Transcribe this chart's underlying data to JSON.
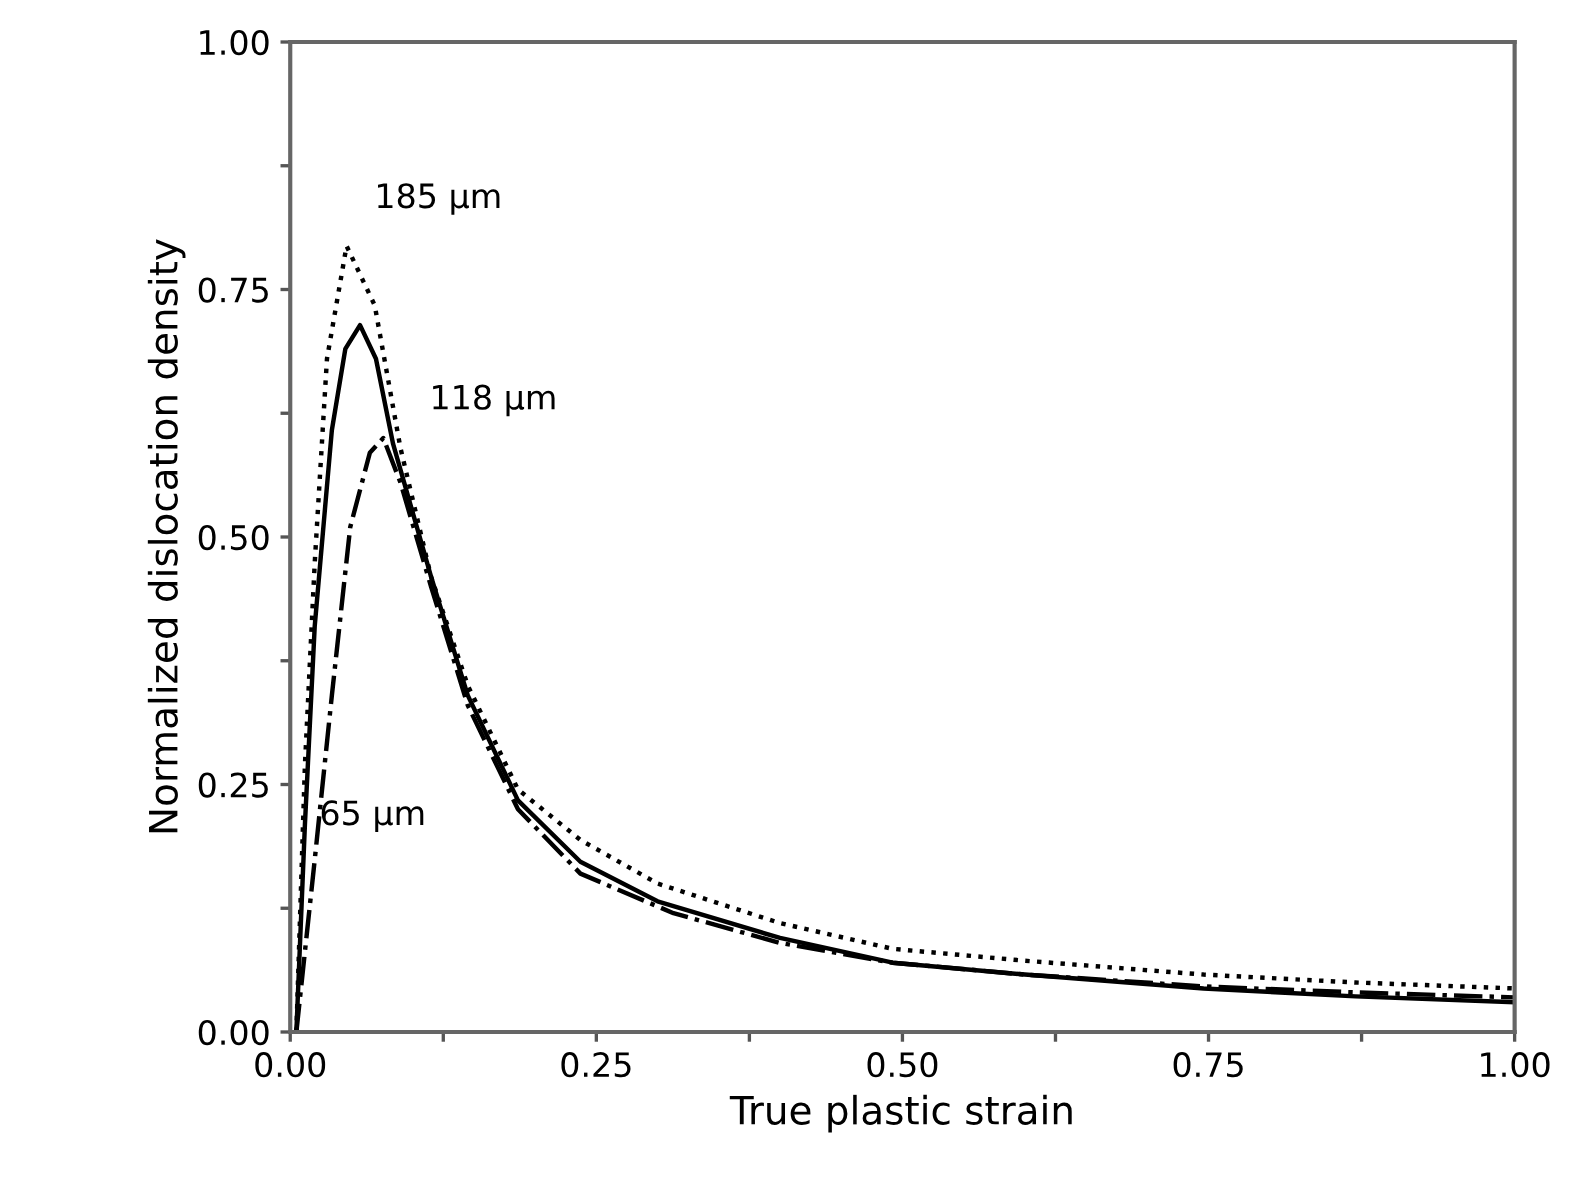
{
  "chart_data": {
    "type": "line",
    "xlabel": "True plastic strain",
    "ylabel": "Normalized dislocation density",
    "xlim": [
      0,
      1.0
    ],
    "ylim": [
      0,
      1.0
    ],
    "xticks": [
      {
        "value": 0,
        "label": "0.00"
      },
      {
        "value": 0.125,
        "label": null
      },
      0.25,
      {
        "value": 0.375,
        "label": null
      },
      {
        "value": 0.5,
        "label": "0.50"
      },
      {
        "value": 0.625,
        "label": null
      },
      0.75,
      {
        "value": 0.875,
        "label": null
      },
      {
        "value": 1,
        "label": "1.00"
      }
    ],
    "yticks": [
      {
        "value": 0,
        "label": "0.00"
      },
      {
        "value": 0.125,
        "label": null
      },
      0.25,
      {
        "value": 0.375,
        "label": null
      },
      {
        "value": 0.5,
        "label": "0.50"
      },
      {
        "value": 0.625,
        "label": null
      },
      0.75,
      {
        "value": 0.875,
        "label": null
      },
      {
        "value": 1,
        "label": "1.00"
      }
    ],
    "grid": false,
    "legend": false,
    "marker": "none",
    "series": [
      {
        "name": "185 µm",
        "color": "#000000",
        "line_style": "dotted",
        "x": [
          0.005,
          0.012,
          0.02,
          0.03,
          0.046,
          0.069,
          0.09,
          0.115,
          0.145,
          0.186,
          0.237,
          0.3,
          0.4,
          0.492,
          0.6,
          0.746,
          0.87,
          1.0
        ],
        "values": [
          0,
          0.27,
          0.474,
          0.68,
          0.794,
          0.734,
          0.59,
          0.46,
          0.35,
          0.245,
          0.194,
          0.15,
          0.11,
          0.084,
          0.072,
          0.058,
          0.05,
          0.044
        ]
      },
      {
        "name": "118 µm",
        "color": "#000000",
        "line_style": "solid",
        "x": [
          0.005,
          0.012,
          0.02,
          0.034,
          0.045,
          0.057,
          0.07,
          0.084,
          0.115,
          0.145,
          0.186,
          0.237,
          0.3,
          0.4,
          0.492,
          0.6,
          0.746,
          0.87,
          1.0
        ],
        "values": [
          0,
          0.21,
          0.41,
          0.608,
          0.69,
          0.714,
          0.68,
          0.594,
          0.46,
          0.34,
          0.234,
          0.172,
          0.132,
          0.095,
          0.07,
          0.058,
          0.044,
          0.036,
          0.03
        ]
      },
      {
        "name": "65 µm",
        "color": "#000000",
        "line_style": "dashdot",
        "x": [
          0.005,
          0.02,
          0.034,
          0.049,
          0.065,
          0.076,
          0.09,
          0.115,
          0.145,
          0.186,
          0.237,
          0.313,
          0.4,
          0.492,
          0.6,
          0.746,
          0.87,
          1.0
        ],
        "values": [
          0,
          0.174,
          0.34,
          0.51,
          0.585,
          0.6,
          0.555,
          0.45,
          0.33,
          0.225,
          0.16,
          0.12,
          0.09,
          0.07,
          0.058,
          0.046,
          0.04,
          0.035
        ]
      }
    ]
  }
}
